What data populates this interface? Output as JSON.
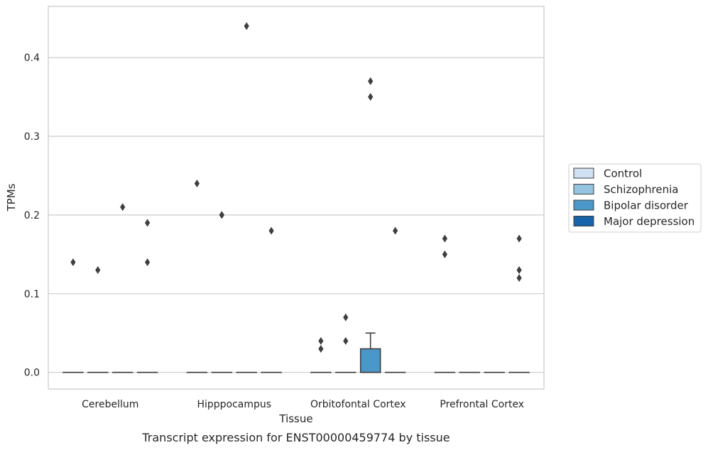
{
  "chart_data": {
    "type": "box",
    "caption": "Transcript expression for ENST00000459774 by tissue",
    "xlabel": "Tissue",
    "ylabel": "TPMs",
    "ylim": [
      -0.021,
      0.465
    ],
    "yticks": [
      0.0,
      0.1,
      0.2,
      0.3,
      0.4
    ],
    "ytick_labels": [
      "0.0",
      "0.1",
      "0.2",
      "0.3",
      "0.4"
    ],
    "grid": "horizontal",
    "legend_position": "right",
    "categories": [
      "Cerebellum",
      "Hipppocampus",
      "Orbitofontal Cortex",
      "Prefrontal Cortex"
    ],
    "series": [
      {
        "name": "Control",
        "color": "#d0e1f2"
      },
      {
        "name": "Schizophrenia",
        "color": "#94c4df"
      },
      {
        "name": "Bipolar disorder",
        "color": "#4a98c9"
      },
      {
        "name": "Major depression",
        "color": "#1764ab"
      }
    ],
    "boxes": [
      {
        "category": 0,
        "series": 0,
        "q1": 0,
        "median": 0,
        "q3": 0,
        "whisker_low": 0,
        "whisker_high": 0,
        "outliers": [
          0.14
        ]
      },
      {
        "category": 0,
        "series": 1,
        "q1": 0,
        "median": 0,
        "q3": 0,
        "whisker_low": 0,
        "whisker_high": 0,
        "outliers": [
          0.13
        ]
      },
      {
        "category": 0,
        "series": 2,
        "q1": 0,
        "median": 0,
        "q3": 0,
        "whisker_low": 0,
        "whisker_high": 0,
        "outliers": [
          0.21
        ]
      },
      {
        "category": 0,
        "series": 3,
        "q1": 0,
        "median": 0,
        "q3": 0,
        "whisker_low": 0,
        "whisker_high": 0,
        "outliers": [
          0.19,
          0.14
        ]
      },
      {
        "category": 1,
        "series": 0,
        "q1": 0,
        "median": 0,
        "q3": 0,
        "whisker_low": 0,
        "whisker_high": 0,
        "outliers": [
          0.24
        ]
      },
      {
        "category": 1,
        "series": 1,
        "q1": 0,
        "median": 0,
        "q3": 0,
        "whisker_low": 0,
        "whisker_high": 0,
        "outliers": [
          0.2,
          0.2
        ]
      },
      {
        "category": 1,
        "series": 2,
        "q1": 0,
        "median": 0,
        "q3": 0,
        "whisker_low": 0,
        "whisker_high": 0,
        "outliers": [
          0.44
        ]
      },
      {
        "category": 1,
        "series": 3,
        "q1": 0,
        "median": 0,
        "q3": 0,
        "whisker_low": 0,
        "whisker_high": 0,
        "outliers": [
          0.18
        ]
      },
      {
        "category": 2,
        "series": 0,
        "q1": 0,
        "median": 0,
        "q3": 0,
        "whisker_low": 0,
        "whisker_high": 0,
        "outliers": [
          0.04,
          0.03
        ]
      },
      {
        "category": 2,
        "series": 1,
        "q1": 0,
        "median": 0,
        "q3": 0,
        "whisker_low": 0,
        "whisker_high": 0,
        "outliers": [
          0.07,
          0.04
        ]
      },
      {
        "category": 2,
        "series": 2,
        "q1": 0,
        "median": 0,
        "q3": 0.03,
        "whisker_low": 0,
        "whisker_high": 0.05,
        "outliers": [
          0.37,
          0.35
        ]
      },
      {
        "category": 2,
        "series": 3,
        "q1": 0,
        "median": 0,
        "q3": 0,
        "whisker_low": 0,
        "whisker_high": 0,
        "outliers": [
          0.18
        ]
      },
      {
        "category": 3,
        "series": 0,
        "q1": 0,
        "median": 0,
        "q3": 0,
        "whisker_low": 0,
        "whisker_high": 0,
        "outliers": [
          0.17,
          0.15
        ]
      },
      {
        "category": 3,
        "series": 1,
        "q1": 0,
        "median": 0,
        "q3": 0,
        "whisker_low": 0,
        "whisker_high": 0,
        "outliers": []
      },
      {
        "category": 3,
        "series": 2,
        "q1": 0,
        "median": 0,
        "q3": 0,
        "whisker_low": 0,
        "whisker_high": 0,
        "outliers": []
      },
      {
        "category": 3,
        "series": 3,
        "q1": 0,
        "median": 0,
        "q3": 0,
        "whisker_low": 0,
        "whisker_high": 0,
        "outliers": [
          0.17,
          0.13,
          0.12
        ]
      }
    ]
  }
}
